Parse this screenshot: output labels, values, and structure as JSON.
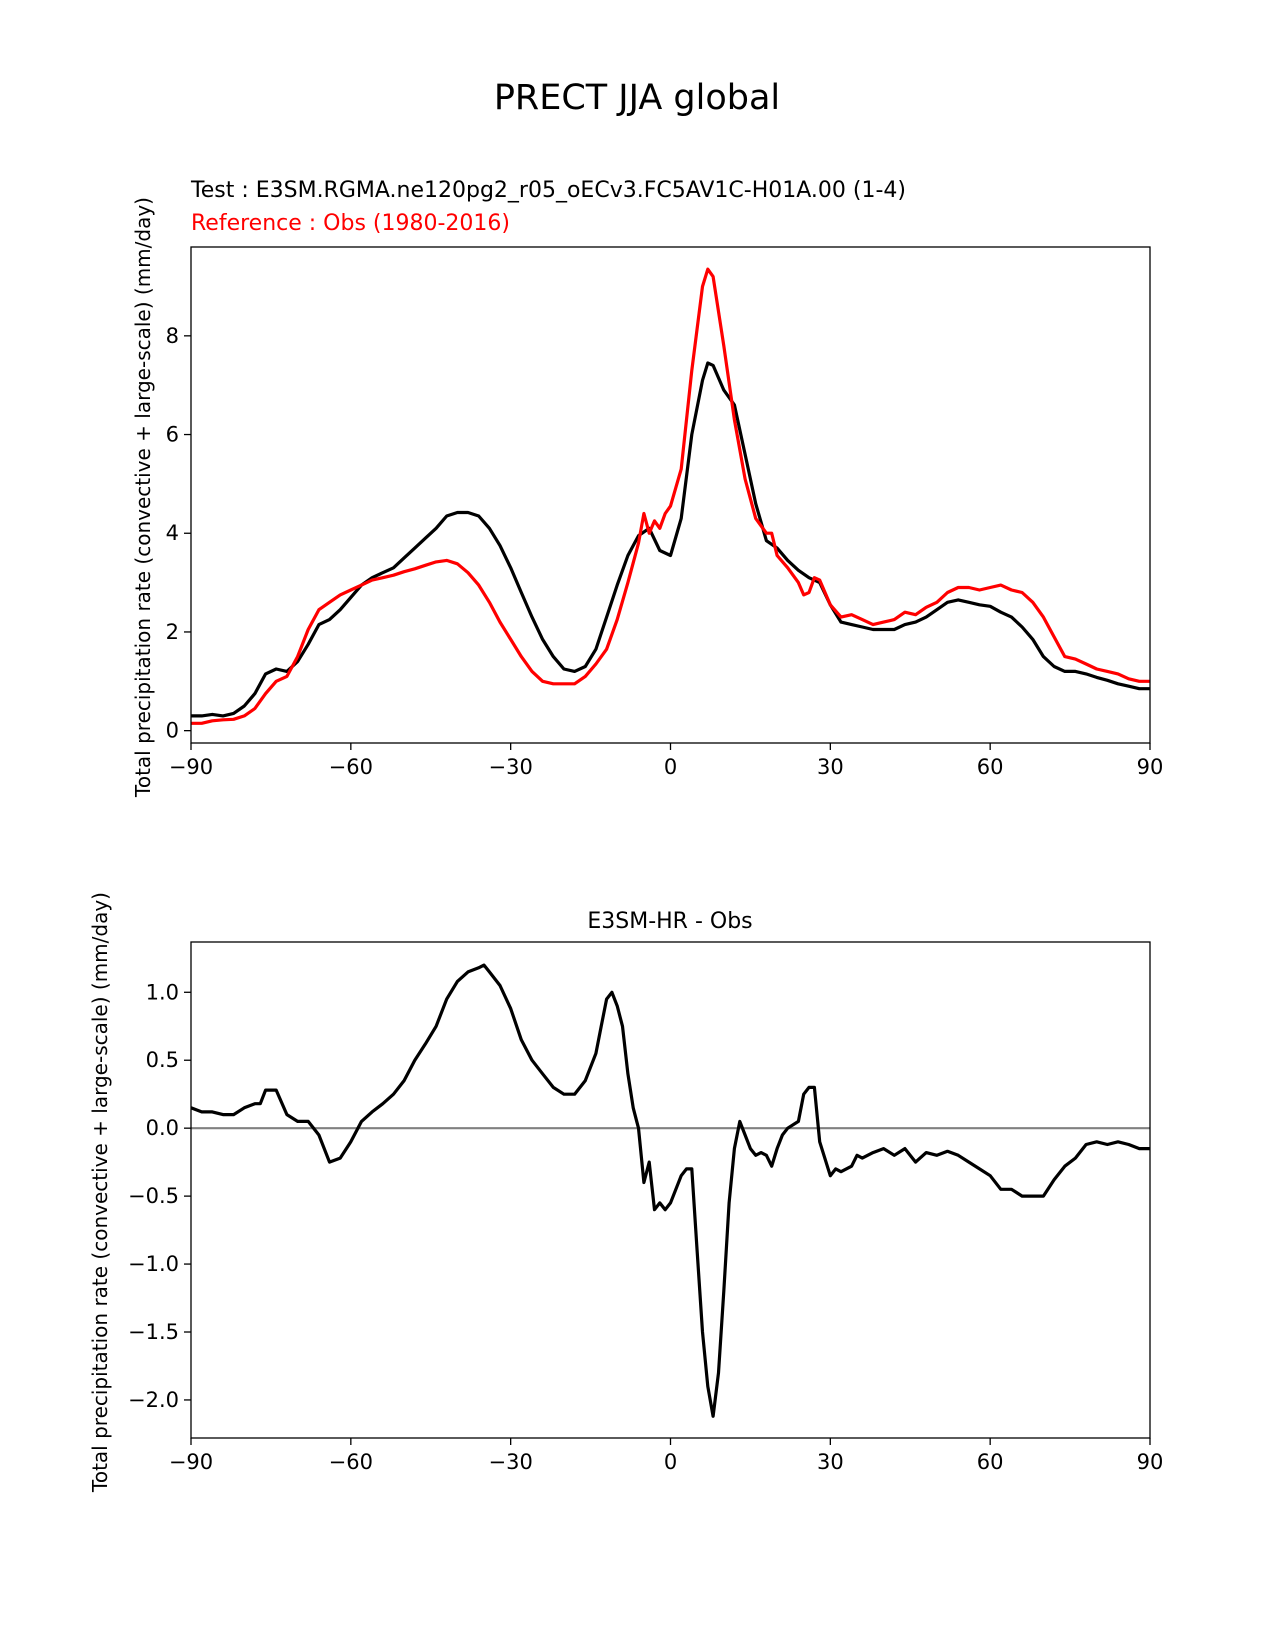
{
  "figure_title": "PRECT JJA global",
  "colors": {
    "test": "#000000",
    "reference": "#ff0000",
    "zero_line": "#808080"
  },
  "chart_data": [
    {
      "type": "line",
      "title_test": "Test : E3SM.RGMA.ne120pg2_r05_oECv3.FC5AV1C-H01A.00 (1-4)",
      "title_reference": "Reference : Obs (1980-2016)",
      "xlabel": "",
      "ylabel": "Total precipitation rate (convective + large-scale) (mm/day)",
      "xlim": [
        -90,
        90
      ],
      "ylim": [
        -0.25,
        9.8
      ],
      "xticks": [
        -90,
        -60,
        -30,
        0,
        30,
        60,
        90
      ],
      "xtick_labels": [
        "−90",
        "−60",
        "−30",
        "0",
        "30",
        "60",
        "90"
      ],
      "yticks": [
        0,
        2,
        4,
        6,
        8
      ],
      "ytick_labels": [
        "0",
        "2",
        "4",
        "6",
        "8"
      ],
      "series": [
        {
          "name": "Test",
          "color": "#000000",
          "x": [
            -90,
            -88,
            -86,
            -84,
            -82,
            -80,
            -78,
            -76,
            -74,
            -72,
            -70,
            -68,
            -66,
            -64,
            -62,
            -60,
            -58,
            -56,
            -54,
            -52,
            -50,
            -48,
            -46,
            -44,
            -42,
            -40,
            -38,
            -36,
            -34,
            -32,
            -30,
            -28,
            -26,
            -24,
            -22,
            -20,
            -18,
            -16,
            -14,
            -12,
            -10,
            -8,
            -6,
            -4,
            -2,
            0,
            2,
            4,
            6,
            7,
            8,
            10,
            12,
            14,
            16,
            18,
            20,
            22,
            24,
            26,
            28,
            30,
            32,
            34,
            36,
            38,
            40,
            42,
            44,
            46,
            48,
            50,
            52,
            54,
            56,
            58,
            60,
            62,
            64,
            66,
            68,
            70,
            72,
            74,
            76,
            78,
            80,
            82,
            84,
            86,
            88,
            90
          ],
          "y": [
            0.3,
            0.3,
            0.33,
            0.3,
            0.35,
            0.5,
            0.75,
            1.15,
            1.25,
            1.2,
            1.4,
            1.75,
            2.15,
            2.25,
            2.45,
            2.7,
            2.95,
            3.1,
            3.2,
            3.3,
            3.5,
            3.7,
            3.9,
            4.1,
            4.35,
            4.42,
            4.42,
            4.35,
            4.1,
            3.75,
            3.3,
            2.8,
            2.3,
            1.85,
            1.5,
            1.25,
            1.2,
            1.3,
            1.65,
            2.3,
            2.95,
            3.55,
            3.95,
            4.1,
            3.65,
            3.55,
            4.3,
            6.0,
            7.1,
            7.45,
            7.4,
            6.9,
            6.6,
            5.6,
            4.6,
            3.85,
            3.7,
            3.45,
            3.25,
            3.1,
            3.0,
            2.55,
            2.2,
            2.15,
            2.1,
            2.05,
            2.05,
            2.05,
            2.15,
            2.2,
            2.3,
            2.45,
            2.6,
            2.65,
            2.6,
            2.55,
            2.52,
            2.4,
            2.3,
            2.1,
            1.85,
            1.5,
            1.3,
            1.2,
            1.2,
            1.15,
            1.08,
            1.02,
            0.95,
            0.9,
            0.85,
            0.85
          ]
        },
        {
          "name": "Reference",
          "color": "#ff0000",
          "x": [
            -90,
            -88,
            -86,
            -84,
            -82,
            -80,
            -78,
            -76,
            -74,
            -72,
            -70,
            -68,
            -66,
            -64,
            -62,
            -60,
            -58,
            -56,
            -54,
            -52,
            -50,
            -48,
            -46,
            -44,
            -42,
            -40,
            -38,
            -36,
            -34,
            -32,
            -30,
            -28,
            -26,
            -24,
            -22,
            -20,
            -18,
            -16,
            -14,
            -12,
            -10,
            -8,
            -6,
            -5,
            -4,
            -3,
            -2,
            -1,
            0,
            2,
            4,
            6,
            7,
            8,
            10,
            12,
            14,
            16,
            18,
            19,
            20,
            22,
            24,
            25,
            26,
            27,
            28,
            30,
            32,
            34,
            36,
            38,
            40,
            42,
            44,
            46,
            48,
            50,
            52,
            54,
            56,
            58,
            60,
            62,
            64,
            66,
            68,
            70,
            72,
            74,
            76,
            78,
            80,
            82,
            84,
            86,
            88,
            90
          ],
          "y": [
            0.15,
            0.15,
            0.2,
            0.22,
            0.23,
            0.3,
            0.45,
            0.75,
            1.0,
            1.1,
            1.5,
            2.05,
            2.45,
            2.6,
            2.75,
            2.85,
            2.95,
            3.05,
            3.1,
            3.15,
            3.22,
            3.28,
            3.35,
            3.42,
            3.45,
            3.38,
            3.2,
            2.95,
            2.6,
            2.2,
            1.85,
            1.5,
            1.2,
            1.0,
            0.95,
            0.95,
            0.95,
            1.1,
            1.35,
            1.65,
            2.25,
            3.0,
            3.8,
            4.4,
            4.0,
            4.25,
            4.1,
            4.4,
            4.55,
            5.3,
            7.3,
            9.0,
            9.35,
            9.2,
            7.8,
            6.3,
            5.1,
            4.3,
            4.0,
            4.0,
            3.55,
            3.3,
            3.0,
            2.75,
            2.8,
            3.1,
            3.05,
            2.55,
            2.3,
            2.35,
            2.25,
            2.15,
            2.2,
            2.25,
            2.4,
            2.35,
            2.5,
            2.6,
            2.8,
            2.9,
            2.9,
            2.85,
            2.9,
            2.95,
            2.85,
            2.8,
            2.6,
            2.3,
            1.9,
            1.5,
            1.45,
            1.35,
            1.25,
            1.2,
            1.15,
            1.05,
            1.0,
            1.0
          ]
        }
      ]
    },
    {
      "type": "line",
      "title": "E3SM-HR - Obs",
      "xlabel": "",
      "ylabel": "Total precipitation rate (convective + large-scale) (mm/day)",
      "xlim": [
        -90,
        90
      ],
      "ylim": [
        -2.28,
        1.37
      ],
      "xticks": [
        -90,
        -60,
        -30,
        0,
        30,
        60,
        90
      ],
      "xtick_labels": [
        "−90",
        "−60",
        "−30",
        "0",
        "30",
        "60",
        "90"
      ],
      "yticks": [
        1.0,
        0.5,
        0.0,
        -0.5,
        -1.0,
        -1.5,
        -2.0
      ],
      "ytick_labels": [
        "1.0",
        "0.5",
        "0.0",
        "−0.5",
        "−1.0",
        "−1.5",
        "−2.0"
      ],
      "hline": 0.0,
      "series": [
        {
          "name": "E3SM-HR - Obs",
          "color": "#000000",
          "x": [
            -90,
            -88,
            -86,
            -84,
            -82,
            -80,
            -78,
            -77,
            -76,
            -75,
            -74,
            -72,
            -70,
            -68,
            -66,
            -64,
            -62,
            -60,
            -58,
            -56,
            -54,
            -52,
            -50,
            -48,
            -46,
            -44,
            -42,
            -40,
            -38,
            -36,
            -35,
            -34,
            -32,
            -30,
            -28,
            -26,
            -24,
            -22,
            -20,
            -18,
            -16,
            -14,
            -13,
            -12,
            -11,
            -10,
            -9,
            -8,
            -7,
            -6,
            -5,
            -4,
            -3,
            -2,
            -1,
            0,
            2,
            3,
            4,
            5,
            6,
            7,
            8,
            9,
            10,
            11,
            12,
            13,
            14,
            15,
            16,
            17,
            18,
            19,
            20,
            21,
            22,
            24,
            25,
            26,
            27,
            28,
            30,
            31,
            32,
            34,
            35,
            36,
            38,
            40,
            42,
            44,
            46,
            48,
            50,
            52,
            54,
            56,
            58,
            60,
            62,
            64,
            66,
            68,
            70,
            72,
            74,
            76,
            78,
            80,
            82,
            84,
            86,
            88,
            90
          ],
          "y": [
            0.15,
            0.12,
            0.12,
            0.1,
            0.1,
            0.15,
            0.18,
            0.18,
            0.28,
            0.28,
            0.28,
            0.1,
            0.05,
            0.05,
            -0.05,
            -0.25,
            -0.22,
            -0.1,
            0.05,
            0.12,
            0.18,
            0.25,
            0.35,
            0.5,
            0.62,
            0.75,
            0.95,
            1.08,
            1.15,
            1.18,
            1.2,
            1.15,
            1.05,
            0.88,
            0.65,
            0.5,
            0.4,
            0.3,
            0.25,
            0.25,
            0.35,
            0.55,
            0.75,
            0.95,
            1.0,
            0.9,
            0.75,
            0.4,
            0.15,
            0.0,
            -0.4,
            -0.25,
            -0.6,
            -0.55,
            -0.6,
            -0.55,
            -0.35,
            -0.3,
            -0.3,
            -0.9,
            -1.5,
            -1.9,
            -2.12,
            -1.8,
            -1.2,
            -0.55,
            -0.15,
            0.05,
            -0.05,
            -0.15,
            -0.2,
            -0.18,
            -0.2,
            -0.28,
            -0.15,
            -0.05,
            0.0,
            0.05,
            0.25,
            0.3,
            0.3,
            -0.1,
            -0.35,
            -0.3,
            -0.32,
            -0.28,
            -0.2,
            -0.22,
            -0.18,
            -0.15,
            -0.2,
            -0.15,
            -0.25,
            -0.18,
            -0.2,
            -0.17,
            -0.2,
            -0.25,
            -0.3,
            -0.35,
            -0.45,
            -0.45,
            -0.5,
            -0.5,
            -0.5,
            -0.38,
            -0.28,
            -0.22,
            -0.12,
            -0.1,
            -0.12,
            -0.1,
            -0.12,
            -0.15,
            -0.15
          ]
        }
      ]
    }
  ]
}
